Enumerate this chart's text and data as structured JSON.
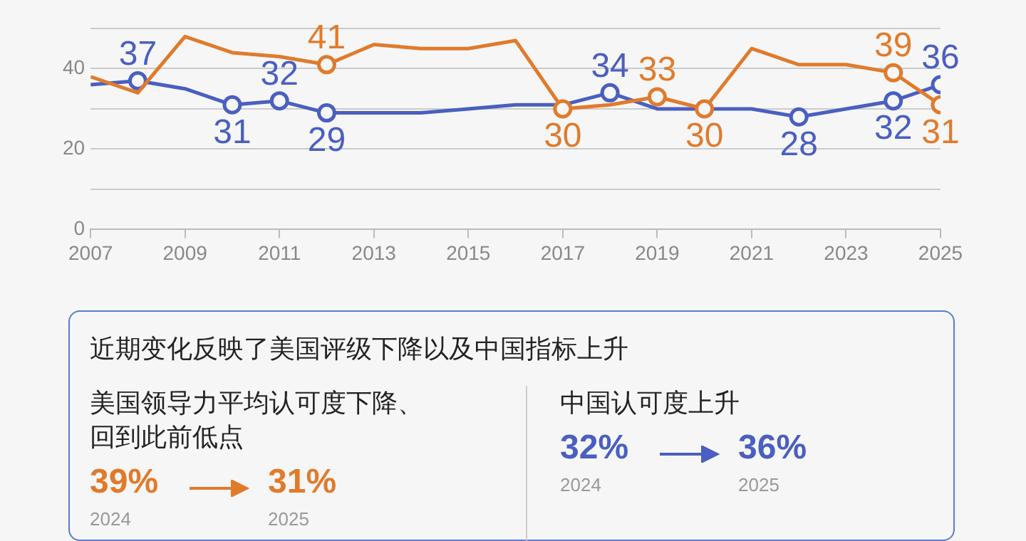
{
  "chart_data": [
    {
      "type": "line",
      "x": [
        2007,
        2008,
        2009,
        2010,
        2011,
        2012,
        2013,
        2014,
        2015,
        2016,
        2017,
        2018,
        2019,
        2020,
        2021,
        2022,
        2023,
        2024,
        2025
      ],
      "series": [
        {
          "color": "#e07b2c",
          "values": [
            38,
            34,
            48,
            44,
            43,
            41,
            46,
            45,
            45,
            47,
            30,
            31,
            33,
            30,
            45,
            41,
            41,
            39,
            31
          ],
          "value_labels": [
            null,
            null,
            null,
            null,
            null,
            "41",
            null,
            null,
            null,
            null,
            "30",
            null,
            "33",
            "30",
            null,
            null,
            null,
            "39",
            "31"
          ]
        },
        {
          "color": "#4a5fc1",
          "values": [
            36,
            37,
            35,
            31,
            32,
            29,
            29,
            29,
            30,
            31,
            31,
            34,
            30,
            30,
            30,
            28,
            30,
            32,
            36
          ],
          "value_labels": [
            null,
            "37",
            null,
            "31",
            "32",
            "29",
            null,
            null,
            null,
            null,
            null,
            "34",
            null,
            null,
            null,
            "28",
            null,
            "32",
            "36"
          ]
        }
      ],
      "xlim": [
        2007,
        2025
      ],
      "xticks": [
        2007,
        2009,
        2011,
        2013,
        2015,
        2017,
        2019,
        2021,
        2023,
        2025
      ],
      "ylim": [
        0,
        50
      ],
      "yticks": [
        0,
        {
          "value": 10,
          "label": null
        },
        20,
        {
          "value": 30,
          "label": null
        },
        40,
        {
          "value": 50,
          "label": null
        }
      ],
      "grid": "y",
      "legend": false,
      "line_style": "solid"
    },
    {
      "type": "other",
      "title": "近期变化反映了美国评级下降以及中国指标上升",
      "annotations": [
        "美国领导力平均认可度下降、回到此前低点",
        "39%",
        "2024",
        "31%",
        "2025",
        "中国认可度上升",
        "32%",
        "2024",
        "36%",
        "2025"
      ]
    }
  ]
}
